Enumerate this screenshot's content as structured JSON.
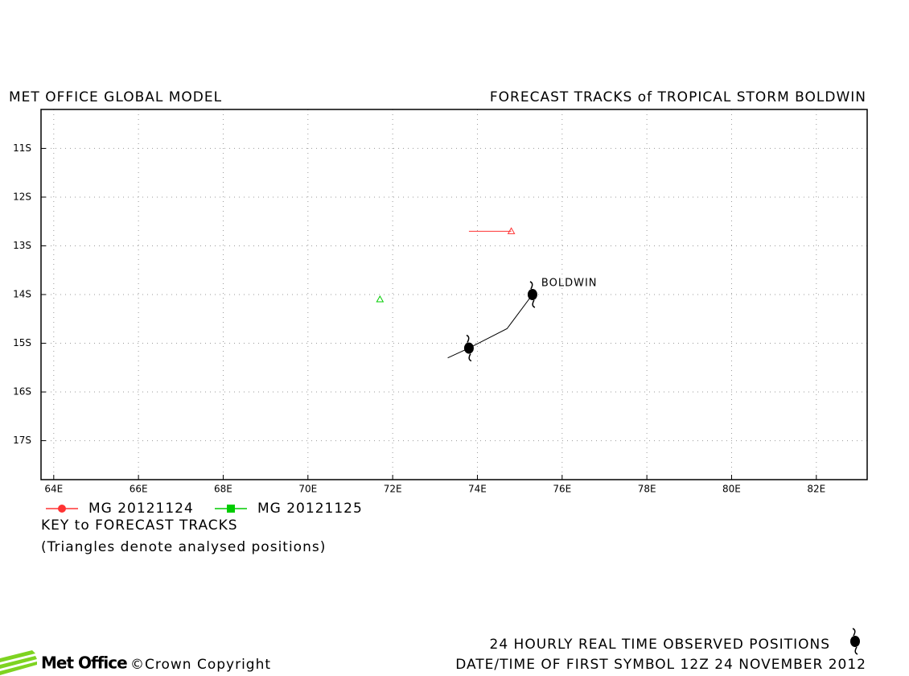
{
  "chart_data": {
    "type": "line",
    "title": "FORECAST TRACKS of TROPICAL STORM BOLDWIN",
    "subtitle": "MET OFFICE GLOBAL MODEL",
    "xlim": [
      63.7,
      83.2
    ],
    "ylim": [
      -17.8,
      -10.2
    ],
    "xticks": [
      {
        "value": 64,
        "label": "64E"
      },
      {
        "value": 66,
        "label": "66E"
      },
      {
        "value": 68,
        "label": "68E"
      },
      {
        "value": 70,
        "label": "70E"
      },
      {
        "value": 72,
        "label": "72E"
      },
      {
        "value": 74,
        "label": "74E"
      },
      {
        "value": 76,
        "label": "76E"
      },
      {
        "value": 78,
        "label": "78E"
      },
      {
        "value": 80,
        "label": "80E"
      },
      {
        "value": 82,
        "label": "82E"
      }
    ],
    "yticks": [
      {
        "value": -11,
        "label": "11S"
      },
      {
        "value": -12,
        "label": "12S"
      },
      {
        "value": -13,
        "label": "13S"
      },
      {
        "value": -14,
        "label": "14S"
      },
      {
        "value": -15,
        "label": "15S"
      },
      {
        "value": -16,
        "label": "16S"
      },
      {
        "value": -17,
        "label": "17S"
      }
    ],
    "grid": true,
    "series": [
      {
        "name": "MG 20121124",
        "color": "#ff3333",
        "x": [
          73.8,
          74.8
        ],
        "values": [
          -12.7,
          -12.7
        ],
        "analysed": {
          "x": 74.8,
          "y": -12.7
        }
      },
      {
        "name": "MG 20121125",
        "color": "#00cc00",
        "x": [],
        "values": [],
        "analysed": {
          "x": 71.7,
          "y": -14.1
        }
      }
    ],
    "observed": {
      "color": "#000000",
      "x": [
        73.3,
        73.8,
        74.7,
        75.3
      ],
      "values": [
        -15.3,
        -15.1,
        -14.7,
        -14.0
      ],
      "positions": {
        "x": [
          73.8,
          75.3
        ],
        "y": [
          -15.1,
          -14.0
        ]
      },
      "label": "BOLDWIN"
    },
    "key_title": "KEY to FORECAST TRACKS",
    "key_note": "(Triangles denote analysed positions)",
    "observed_note": "24 HOURLY REAL TIME OBSERVED POSITIONS",
    "first_symbol": "DATE/TIME OF FIRST SYMBOL 12Z 24 NOVEMBER 2012",
    "logo": "Met Office",
    "copyright": "©Crown Copyright"
  }
}
